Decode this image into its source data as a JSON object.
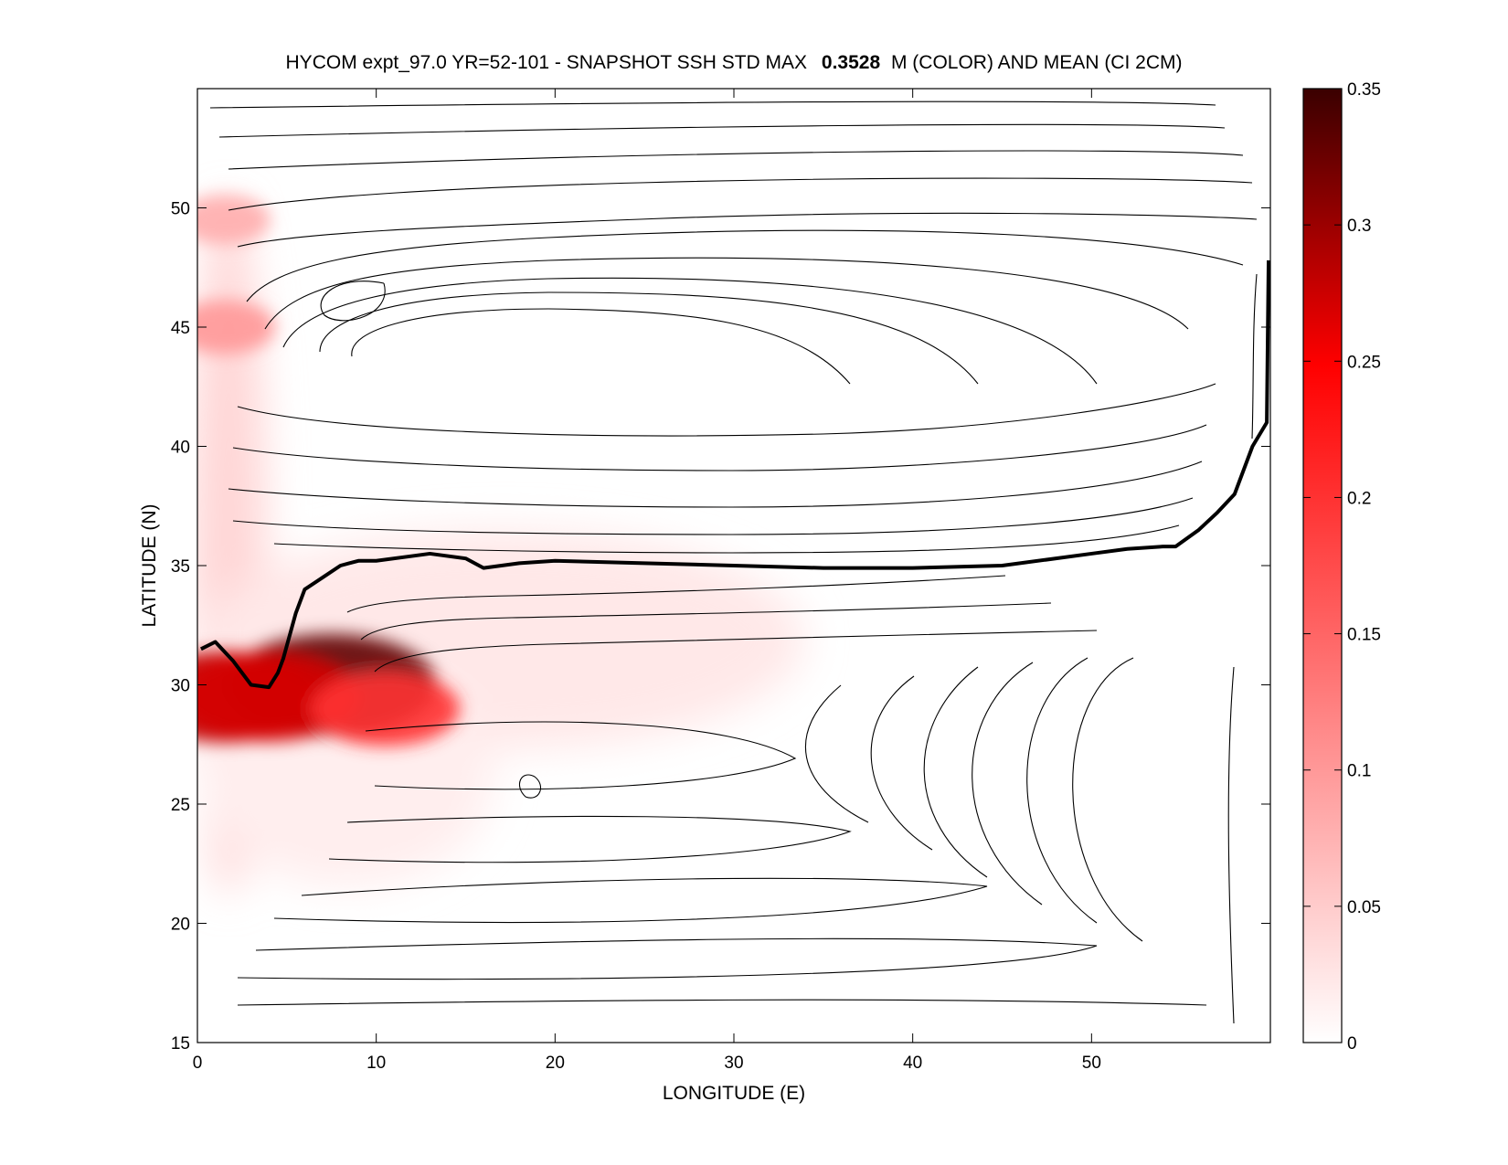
{
  "chart_data": {
    "type": "heatmap",
    "title": {
      "prefix": "HYCOM expt_97.0 YR=52-101 - SNAPSHOT SSH STD MAX",
      "max_value": "0.3528",
      "suffix": "M (COLOR) AND MEAN (CI 2CM)"
    },
    "xlabel": "LONGITUDE (E)",
    "ylabel": "LATITUDE (N)",
    "xlim": [
      0,
      60
    ],
    "ylim": [
      15,
      55
    ],
    "x_ticks": [
      0,
      10,
      20,
      30,
      40,
      50
    ],
    "y_ticks": [
      15,
      20,
      25,
      30,
      35,
      40,
      45,
      50
    ],
    "colorbar": {
      "range": [
        0,
        0.35
      ],
      "ticks": [
        "0",
        "0.05",
        "0.1",
        "0.15",
        "0.2",
        "0.25",
        "0.3",
        "0.35"
      ],
      "colors": [
        "#ffffff",
        "#ff0000",
        "#3a0000"
      ]
    },
    "std_hotspots": [
      {
        "lon": 7.5,
        "lat": 30.0,
        "value": 0.33
      },
      {
        "lon": 1.5,
        "lat": 29.5,
        "value": 0.28
      },
      {
        "lon": 4.0,
        "lat": 29.5,
        "value": 0.27
      },
      {
        "lon": 10.5,
        "lat": 29.0,
        "value": 0.2
      },
      {
        "lon": 1.5,
        "lat": 45.0,
        "value": 0.1
      },
      {
        "lon": 1.5,
        "lat": 49.5,
        "value": 0.08
      }
    ],
    "zero_contour": {
      "lon": [
        0.2,
        1.0,
        2.0,
        3.0,
        4.0,
        4.5,
        4.8,
        5.5,
        6.0,
        7.0,
        8.0,
        9.0,
        10.0,
        12.0,
        13.0,
        15.0,
        16.0,
        18.0,
        20.0,
        25.0,
        30.0,
        35.0,
        40.0,
        45.0,
        50.0,
        52.0,
        54.0,
        54.7,
        56.0,
        57.0,
        58.0,
        59.0,
        59.8,
        59.9
      ],
      "lat": [
        31.5,
        31.8,
        31.0,
        30.0,
        29.9,
        30.5,
        31.1,
        33.0,
        34.0,
        34.5,
        35.0,
        35.2,
        35.2,
        35.4,
        35.5,
        35.3,
        34.9,
        35.1,
        35.2,
        35.1,
        35.0,
        34.9,
        34.9,
        35.0,
        35.5,
        35.7,
        35.8,
        35.8,
        36.5,
        37.2,
        38.0,
        40.0,
        41.0,
        47.8
      ]
    }
  }
}
